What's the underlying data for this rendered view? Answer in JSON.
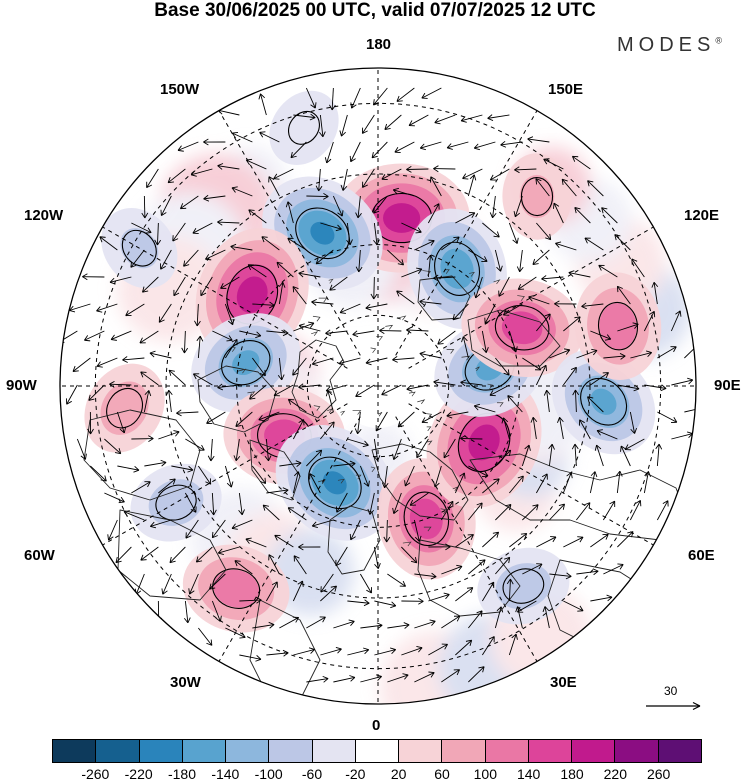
{
  "title": "Base 30/06/2025 00 UTC, valid 07/07/2025 12 UTC",
  "brand": "MODES",
  "brand_mark": "®",
  "longitude_labels": {
    "top": "180",
    "bottom": "0",
    "left": "90W",
    "right": "90E",
    "upper_left_1": "150W",
    "upper_left_2": "120W",
    "upper_right_1": "150E",
    "upper_right_2": "120E",
    "lower_left_1": "60W",
    "lower_left_2": "30W",
    "lower_right_1": "60E",
    "lower_right_2": "30E"
  },
  "reference_vector": {
    "label": "30"
  },
  "colorbar": {
    "colors": [
      "#0d3a5c",
      "#15608f",
      "#2a84bb",
      "#58a3cf",
      "#8db7dd",
      "#bcc7e6",
      "#e4e4f2",
      "#ffffff",
      "#f7d3d7",
      "#f1a7b7",
      "#ea77a5",
      "#dd449a",
      "#c11a8d",
      "#8b0d82",
      "#5e0f74"
    ],
    "tick_labels": [
      "-260",
      "-220",
      "-180",
      "-140",
      "-100",
      "-60",
      "-20",
      "20",
      "60",
      "100",
      "140",
      "180",
      "220",
      "260"
    ]
  },
  "anomaly_centers": [
    {
      "lon_deg": 172,
      "colat_deg": 48,
      "value": 200
    },
    {
      "lon_deg": 200,
      "colat_deg": 46,
      "value": -180
    },
    {
      "lon_deg": 146,
      "colat_deg": 40,
      "value": -160
    },
    {
      "lon_deg": 234,
      "colat_deg": 44,
      "value": 200
    },
    {
      "lon_deg": 260,
      "colat_deg": 38,
      "value": -140
    },
    {
      "lon_deg": 298,
      "colat_deg": 30,
      "value": 160
    },
    {
      "lon_deg": 336,
      "colat_deg": 30,
      "value": -180
    },
    {
      "lon_deg": 20,
      "colat_deg": 40,
      "value": 160
    },
    {
      "lon_deg": 62,
      "colat_deg": 34,
      "value": 200
    },
    {
      "lon_deg": 99,
      "colat_deg": 32,
      "value": -140
    },
    {
      "lon_deg": 112,
      "colat_deg": 44,
      "value": 160
    },
    {
      "lon_deg": 86,
      "colat_deg": 64,
      "value": -140
    },
    {
      "lon_deg": 104,
      "colat_deg": 70,
      "value": 120
    },
    {
      "lon_deg": 275,
      "colat_deg": 72,
      "value": 80
    },
    {
      "lon_deg": 300,
      "colat_deg": 66,
      "value": -80
    },
    {
      "lon_deg": 325,
      "colat_deg": 70,
      "value": 120
    },
    {
      "lon_deg": 240,
      "colat_deg": 78,
      "value": -60
    },
    {
      "lon_deg": 140,
      "colat_deg": 70,
      "value": 60
    },
    {
      "lon_deg": 196,
      "colat_deg": 76,
      "value": -40
    },
    {
      "lon_deg": 36,
      "colat_deg": 70,
      "value": -80
    }
  ]
}
